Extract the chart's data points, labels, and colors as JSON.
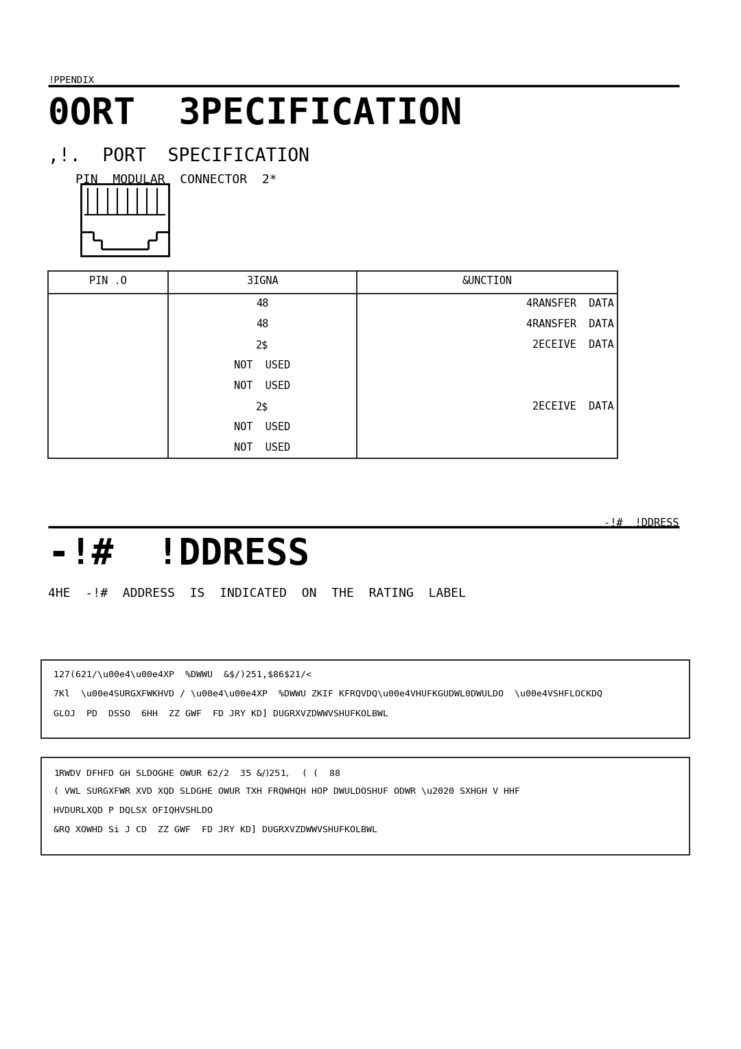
{
  "bg_color": "#ffffff",
  "appendix_label": "!PPENDIX",
  "title": "0ORT  3PECIFICATION",
  "section1_title": ",!.  PORT  SPECIFICATION",
  "connector_label": "PIN  MODULAR  CONNECTOR  2*",
  "table_headers": [
    "PIN .O",
    "3IGNA",
    "&UNCTION"
  ],
  "table_col2": [
    "48",
    "48",
    "2$",
    "NOT  USED",
    "NOT  USED",
    "2$",
    "NOT  USED",
    "NOT  USED"
  ],
  "table_col3": [
    "4RANSFER  DATA",
    "4RANSFER  DATA",
    "2ECEIVE  DATA",
    "",
    "",
    "2ECEIVE  DATA",
    "",
    ""
  ],
  "section2_label_right": "-!#  !DDRESS",
  "section2_title": "-!#  !DDRESS",
  "section2_subtitle": "4HE  -!#  ADDRESS  IS  INDICATED  ON  THE  RATING  LABEL",
  "note1_lines": [
    "127(621/\\u00e4\\u00e4XP  %DWWU  &$/)251,$86$21/<",
    "7Kl  \\u00e4SURGXFWKHVD / \\u00e4\\u00e4XP  %DWWU ZKIF KFRQVDQ\\u00e4VHUFKGUDWL0DWULDO  \\u00e4VSHFLOCKDQ",
    "GLOJ  PD  DSSO  6HH  ZZ GWF  FD JRY KD] DUGRXVZDWWVSHUFKOLBWL"
  ],
  "note2_lines": [
    "1RWDV DFHFD GH SLDOGHE OWUR 62/2  3$5$ &$/)251,$  ( (  88",
    "( VWL SURGXFWR XVD XQD SLDGHE OWUR TXH FRQWHQH HOP DWULDOSHUF ODWR \\u2020 SXHGH V HHF",
    "HVDURLXQD P DQLSX OFIQHVSHLDO",
    "&RQ XOWHD Si J CD  ZZ GWF  FD JRY KD] DUGRXVZDWWVSHUFKOLBWL"
  ]
}
